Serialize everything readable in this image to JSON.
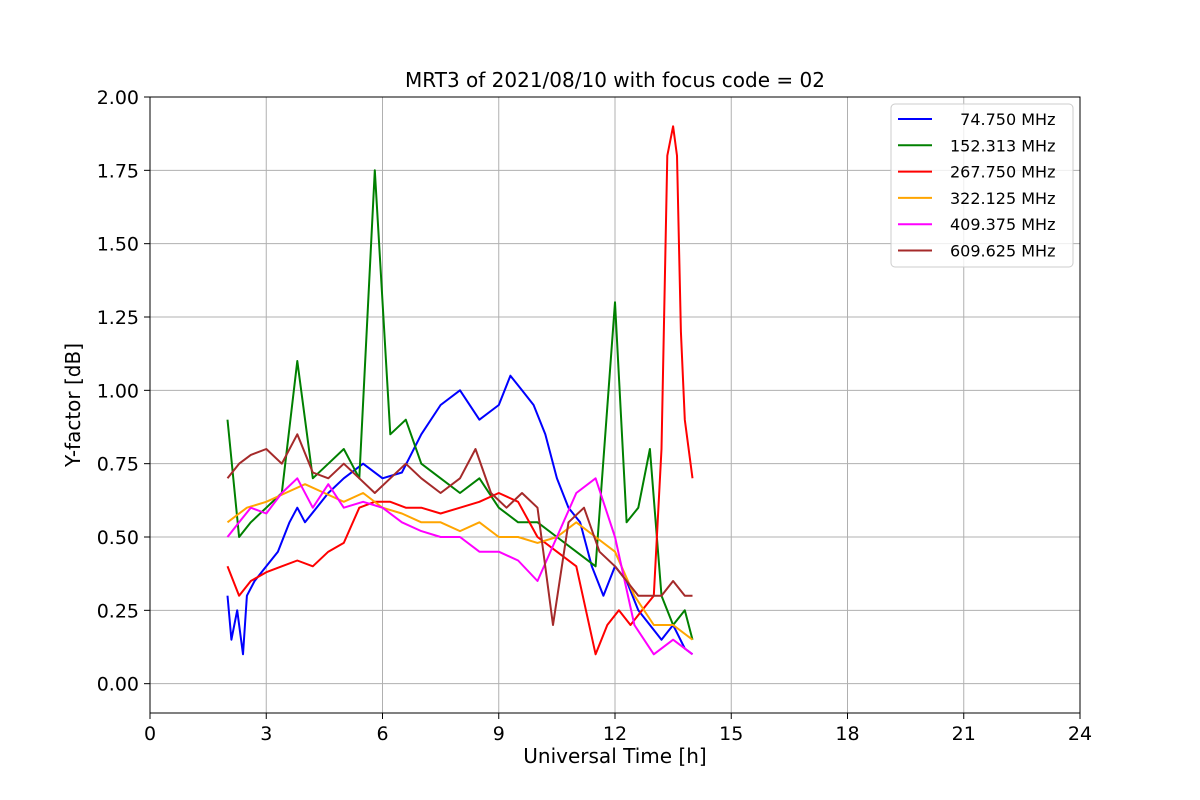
{
  "chart_data": {
    "type": "line",
    "title": "MRT3 of 2021/08/10 with focus code = 02",
    "xlabel": "Universal Time [h]",
    "ylabel": "Y-factor [dB]",
    "xlim": [
      0,
      24
    ],
    "ylim": [
      -0.1,
      2.0
    ],
    "xticks": [
      0,
      3,
      6,
      9,
      12,
      15,
      18,
      21,
      24
    ],
    "xtick_labels": [
      "0",
      "3",
      "6",
      "9",
      "12",
      "15",
      "18",
      "21",
      "24"
    ],
    "yticks": [
      0.0,
      0.25,
      0.5,
      0.75,
      1.0,
      1.25,
      1.5,
      1.75,
      2.0
    ],
    "ytick_labels": [
      "0.00",
      "0.25",
      "0.50",
      "0.75",
      "1.00",
      "1.25",
      "1.50",
      "1.75",
      "2.00"
    ],
    "grid": true,
    "legend_position": "top-right",
    "series": [
      {
        "name": "  74.750 MHz",
        "color": "#0000ff",
        "x": [
          2.0,
          2.1,
          2.25,
          2.4,
          2.5,
          2.7,
          3.0,
          3.3,
          3.6,
          3.8,
          4.0,
          4.3,
          4.6,
          5.0,
          5.5,
          6.0,
          6.5,
          7.0,
          7.5,
          8.0,
          8.5,
          9.0,
          9.3,
          9.6,
          9.9,
          10.2,
          10.5,
          10.8,
          11.1,
          11.4,
          11.7,
          12.0,
          12.3,
          12.6,
          12.9,
          13.2,
          13.5,
          13.8,
          14.0
        ],
        "y": [
          0.3,
          0.15,
          0.25,
          0.1,
          0.3,
          0.35,
          0.4,
          0.45,
          0.55,
          0.6,
          0.55,
          0.6,
          0.65,
          0.7,
          0.75,
          0.7,
          0.72,
          0.85,
          0.95,
          1.0,
          0.9,
          0.95,
          1.05,
          1.0,
          0.95,
          0.85,
          0.7,
          0.6,
          0.55,
          0.4,
          0.3,
          0.4,
          0.35,
          0.25,
          0.2,
          0.15,
          0.2,
          0.12,
          0.1
        ]
      },
      {
        "name": "152.313 MHz",
        "color": "#008000",
        "x": [
          2.0,
          2.3,
          2.6,
          3.0,
          3.4,
          3.8,
          4.2,
          4.6,
          5.0,
          5.4,
          5.8,
          6.2,
          6.6,
          7.0,
          7.5,
          8.0,
          8.5,
          9.0,
          9.5,
          10.0,
          10.5,
          11.0,
          11.5,
          12.0,
          12.3,
          12.6,
          12.9,
          13.2,
          13.5,
          13.8,
          14.0
        ],
        "y": [
          0.9,
          0.5,
          0.55,
          0.6,
          0.65,
          1.1,
          0.7,
          0.75,
          0.8,
          0.7,
          1.75,
          0.85,
          0.9,
          0.75,
          0.7,
          0.65,
          0.7,
          0.6,
          0.55,
          0.55,
          0.5,
          0.45,
          0.4,
          1.3,
          0.55,
          0.6,
          0.8,
          0.3,
          0.2,
          0.25,
          0.15
        ]
      },
      {
        "name": "267.750 MHz",
        "color": "#ff0000",
        "x": [
          2.0,
          2.3,
          2.6,
          3.0,
          3.4,
          3.8,
          4.2,
          4.6,
          5.0,
          5.4,
          5.8,
          6.2,
          6.6,
          7.0,
          7.5,
          8.0,
          8.5,
          9.0,
          9.5,
          10.0,
          10.5,
          11.0,
          11.5,
          11.8,
          12.1,
          12.4,
          12.7,
          13.0,
          13.2,
          13.35,
          13.5,
          13.6,
          13.7,
          13.8,
          14.0
        ],
        "y": [
          0.4,
          0.3,
          0.35,
          0.38,
          0.4,
          0.42,
          0.4,
          0.45,
          0.48,
          0.6,
          0.62,
          0.62,
          0.6,
          0.6,
          0.58,
          0.6,
          0.62,
          0.65,
          0.62,
          0.5,
          0.45,
          0.4,
          0.1,
          0.2,
          0.25,
          0.2,
          0.25,
          0.3,
          0.8,
          1.8,
          1.9,
          1.8,
          1.2,
          0.9,
          0.7
        ]
      },
      {
        "name": "322.125 MHz",
        "color": "#ffa500",
        "x": [
          2.0,
          2.5,
          3.0,
          3.5,
          4.0,
          4.5,
          5.0,
          5.5,
          6.0,
          6.5,
          7.0,
          7.5,
          8.0,
          8.5,
          9.0,
          9.5,
          10.0,
          10.5,
          11.0,
          11.5,
          12.0,
          12.5,
          13.0,
          13.5,
          14.0
        ],
        "y": [
          0.55,
          0.6,
          0.62,
          0.65,
          0.68,
          0.65,
          0.62,
          0.65,
          0.6,
          0.58,
          0.55,
          0.55,
          0.52,
          0.55,
          0.5,
          0.5,
          0.48,
          0.5,
          0.55,
          0.5,
          0.45,
          0.3,
          0.2,
          0.2,
          0.15
        ]
      },
      {
        "name": "409.375 MHz",
        "color": "#ff00ff",
        "x": [
          2.0,
          2.3,
          2.6,
          3.0,
          3.4,
          3.8,
          4.2,
          4.6,
          5.0,
          5.5,
          6.0,
          6.5,
          7.0,
          7.5,
          8.0,
          8.5,
          9.0,
          9.5,
          10.0,
          10.5,
          11.0,
          11.5,
          12.0,
          12.5,
          13.0,
          13.5,
          14.0
        ],
        "y": [
          0.5,
          0.55,
          0.6,
          0.58,
          0.65,
          0.7,
          0.6,
          0.68,
          0.6,
          0.62,
          0.6,
          0.55,
          0.52,
          0.5,
          0.5,
          0.45,
          0.45,
          0.42,
          0.35,
          0.5,
          0.65,
          0.7,
          0.5,
          0.2,
          0.1,
          0.15,
          0.1
        ]
      },
      {
        "name": "609.625 MHz",
        "color": "#a52a2a",
        "x": [
          2.0,
          2.3,
          2.6,
          3.0,
          3.4,
          3.8,
          4.2,
          4.6,
          5.0,
          5.4,
          5.8,
          6.2,
          6.6,
          7.0,
          7.5,
          8.0,
          8.4,
          8.8,
          9.2,
          9.6,
          10.0,
          10.4,
          10.8,
          11.2,
          11.6,
          12.0,
          12.3,
          12.6,
          12.9,
          13.2,
          13.5,
          13.8,
          14.0
        ],
        "y": [
          0.7,
          0.75,
          0.78,
          0.8,
          0.75,
          0.85,
          0.72,
          0.7,
          0.75,
          0.7,
          0.65,
          0.7,
          0.75,
          0.7,
          0.65,
          0.7,
          0.8,
          0.65,
          0.6,
          0.65,
          0.6,
          0.2,
          0.55,
          0.6,
          0.45,
          0.4,
          0.35,
          0.3,
          0.3,
          0.3,
          0.35,
          0.3,
          0.3
        ]
      }
    ]
  }
}
